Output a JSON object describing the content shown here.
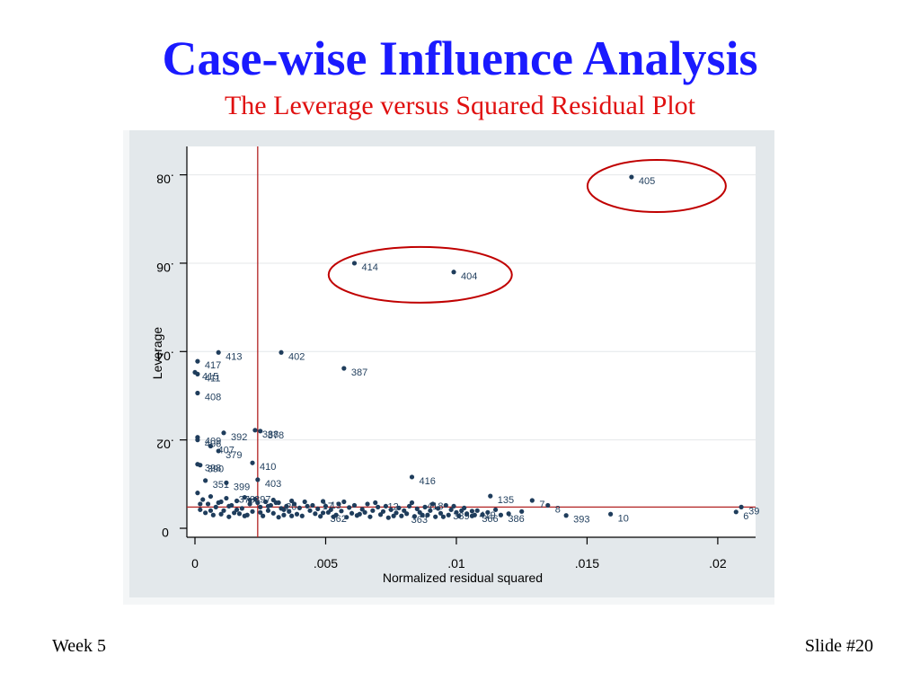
{
  "slide": {
    "title": "Case-wise Influence Analysis",
    "subtitle": "The Leverage versus Squared Residual Plot",
    "footer_left": "Week 5",
    "footer_right": "Slide #20"
  },
  "colors": {
    "title": "#1a1aff",
    "subtitle": "#e01010",
    "point": "#1f3d5c",
    "reference_line": "#b22222",
    "highlight_ellipse": "#c00000",
    "plot_region_bg": "#e8ecef"
  },
  "chart_data": {
    "type": "scatter",
    "xlabel": "Normalized residual squared",
    "ylabel": "Leverage",
    "xlim": [
      0,
      0.021
    ],
    "ylim": [
      0,
      0.085
    ],
    "x_ticks": [
      0,
      0.005,
      0.01,
      0.015,
      0.02
    ],
    "x_tick_labels": [
      "0",
      ".005",
      ".01",
      ".015",
      ".02"
    ],
    "y_ticks": [
      0,
      0.02,
      0.04,
      0.06,
      0.08
    ],
    "y_tick_labels": [
      "0",
      ".02",
      ".04",
      ".06",
      ".08"
    ],
    "reference_lines": {
      "x": 0.0024,
      "y": 0.0048
    },
    "grid": true,
    "labeled_points": [
      {
        "label": "405",
        "x": 0.0167,
        "y": 0.0795
      },
      {
        "label": "414",
        "x": 0.0061,
        "y": 0.06
      },
      {
        "label": "404",
        "x": 0.0099,
        "y": 0.058
      },
      {
        "label": "413",
        "x": 0.0009,
        "y": 0.0398
      },
      {
        "label": "402",
        "x": 0.0033,
        "y": 0.0398
      },
      {
        "label": "387",
        "x": 0.0057,
        "y": 0.0362
      },
      {
        "label": "417",
        "x": 0.0001,
        "y": 0.0378
      },
      {
        "label": "415",
        "x": 0.0,
        "y": 0.0353
      },
      {
        "label": "411",
        "x": 0.0001,
        "y": 0.0349
      },
      {
        "label": "408",
        "x": 0.0001,
        "y": 0.0306
      },
      {
        "label": "392",
        "x": 0.0011,
        "y": 0.0216
      },
      {
        "label": "378",
        "x": 0.0025,
        "y": 0.022
      },
      {
        "label": "388",
        "x": 0.0023,
        "y": 0.0222
      },
      {
        "label": "409",
        "x": 0.0001,
        "y": 0.0206
      },
      {
        "label": "406",
        "x": 0.0001,
        "y": 0.02
      },
      {
        "label": "407",
        "x": 0.0006,
        "y": 0.0186
      },
      {
        "label": "379",
        "x": 0.0009,
        "y": 0.0175
      },
      {
        "label": "410",
        "x": 0.0022,
        "y": 0.0148
      },
      {
        "label": "398",
        "x": 0.0001,
        "y": 0.0145
      },
      {
        "label": "390",
        "x": 0.0002,
        "y": 0.0143
      },
      {
        "label": "416",
        "x": 0.0083,
        "y": 0.0116
      },
      {
        "label": "351",
        "x": 0.0004,
        "y": 0.0108
      },
      {
        "label": "399",
        "x": 0.0012,
        "y": 0.0103
      },
      {
        "label": "403",
        "x": 0.0024,
        "y": 0.011
      },
      {
        "label": "135",
        "x": 0.0113,
        "y": 0.0073
      },
      {
        "label": "13",
        "x": 0.0049,
        "y": 0.0061
      },
      {
        "label": "20",
        "x": 0.0032,
        "y": 0.0058
      },
      {
        "label": "7",
        "x": 0.0129,
        "y": 0.0063
      },
      {
        "label": "8",
        "x": 0.0135,
        "y": 0.0052
      },
      {
        "label": "39",
        "x": 0.0209,
        "y": 0.0048
      },
      {
        "label": "6",
        "x": 0.0207,
        "y": 0.0037
      },
      {
        "label": "393",
        "x": 0.0142,
        "y": 0.0029
      },
      {
        "label": "10",
        "x": 0.0159,
        "y": 0.0032
      },
      {
        "label": "386",
        "x": 0.0117,
        "y": 0.003
      },
      {
        "label": "366",
        "x": 0.0107,
        "y": 0.003
      },
      {
        "label": "419",
        "x": 0.0106,
        "y": 0.0039
      }
    ],
    "cluster_points": [
      [
        0.0001,
        0.008
      ],
      [
        0.0003,
        0.0065
      ],
      [
        0.0005,
        0.0055
      ],
      [
        0.0006,
        0.0072
      ],
      [
        0.0008,
        0.0048
      ],
      [
        0.001,
        0.006
      ],
      [
        0.0011,
        0.004
      ],
      [
        0.0012,
        0.0068
      ],
      [
        0.0014,
        0.0052
      ],
      [
        0.0015,
        0.0035
      ],
      [
        0.0016,
        0.0062
      ],
      [
        0.0018,
        0.0045
      ],
      [
        0.0019,
        0.007
      ],
      [
        0.002,
        0.003
      ],
      [
        0.0021,
        0.0055
      ],
      [
        0.0022,
        0.0038
      ],
      [
        0.0023,
        0.0066
      ],
      [
        0.0025,
        0.0048
      ],
      [
        0.0026,
        0.0028
      ],
      [
        0.0027,
        0.006
      ],
      [
        0.0028,
        0.004
      ],
      [
        0.0029,
        0.0052
      ],
      [
        0.003,
        0.0034
      ],
      [
        0.0031,
        0.0058
      ],
      [
        0.0033,
        0.0045
      ],
      [
        0.0034,
        0.003
      ],
      [
        0.0035,
        0.005
      ],
      [
        0.0036,
        0.0038
      ],
      [
        0.0038,
        0.0055
      ],
      [
        0.0039,
        0.0032
      ],
      [
        0.004,
        0.0046
      ],
      [
        0.0041,
        0.0028
      ],
      [
        0.0042,
        0.006
      ],
      [
        0.0044,
        0.004
      ],
      [
        0.0045,
        0.0052
      ],
      [
        0.0046,
        0.0033
      ],
      [
        0.0047,
        0.0044
      ],
      [
        0.0048,
        0.0027
      ],
      [
        0.005,
        0.005
      ],
      [
        0.0051,
        0.0036
      ],
      [
        0.0052,
        0.0042
      ],
      [
        0.0054,
        0.003
      ],
      [
        0.0055,
        0.0055
      ],
      [
        0.0056,
        0.0039
      ],
      [
        0.0058,
        0.0025
      ],
      [
        0.0059,
        0.0047
      ],
      [
        0.006,
        0.0034
      ],
      [
        0.0061,
        0.0052
      ],
      [
        0.0062,
        0.0029
      ],
      [
        0.0064,
        0.0043
      ],
      [
        0.0065,
        0.0036
      ],
      [
        0.0066,
        0.0055
      ],
      [
        0.0067,
        0.0026
      ],
      [
        0.0068,
        0.004
      ],
      [
        0.007,
        0.0048
      ],
      [
        0.0071,
        0.0031
      ],
      [
        0.0072,
        0.0038
      ],
      [
        0.0073,
        0.005
      ],
      [
        0.0074,
        0.0024
      ],
      [
        0.0075,
        0.0042
      ],
      [
        0.0077,
        0.0035
      ],
      [
        0.0078,
        0.0046
      ],
      [
        0.0079,
        0.0028
      ],
      [
        0.008,
        0.004
      ],
      [
        0.0081,
        0.0033
      ],
      [
        0.0082,
        0.005
      ],
      [
        0.0084,
        0.0027
      ],
      [
        0.0085,
        0.0044
      ],
      [
        0.0086,
        0.0036
      ],
      [
        0.0088,
        0.0048
      ],
      [
        0.0089,
        0.003
      ],
      [
        0.009,
        0.004
      ],
      [
        0.0092,
        0.0026
      ],
      [
        0.0093,
        0.0045
      ],
      [
        0.0094,
        0.0034
      ],
      [
        0.0096,
        0.0052
      ],
      [
        0.0097,
        0.003
      ],
      [
        0.0098,
        0.0042
      ],
      [
        0.01,
        0.0036
      ],
      [
        0.0101,
        0.0028
      ],
      [
        0.0103,
        0.0046
      ],
      [
        0.0104,
        0.0033
      ],
      [
        0.0108,
        0.004
      ],
      [
        0.011,
        0.0031
      ],
      [
        0.0112,
        0.0036
      ],
      [
        0.0115,
        0.0042
      ],
      [
        0.012,
        0.0033
      ],
      [
        0.0125,
        0.0038
      ],
      [
        0.0002,
        0.0042
      ],
      [
        0.0004,
        0.0035
      ],
      [
        0.0007,
        0.003
      ],
      [
        0.0009,
        0.0058
      ],
      [
        0.0013,
        0.0026
      ],
      [
        0.0017,
        0.0033
      ],
      [
        0.0024,
        0.0058
      ],
      [
        0.0032,
        0.0025
      ],
      [
        0.0037,
        0.0062
      ],
      [
        0.0043,
        0.005
      ],
      [
        0.0049,
        0.0035
      ],
      [
        0.0053,
        0.0026
      ],
      [
        0.0057,
        0.006
      ],
      [
        0.0063,
        0.0032
      ],
      [
        0.0069,
        0.0058
      ],
      [
        0.0076,
        0.0028
      ],
      [
        0.0083,
        0.0058
      ],
      [
        0.0087,
        0.003
      ],
      [
        0.0091,
        0.0055
      ],
      [
        0.0095,
        0.0026
      ],
      [
        0.0099,
        0.005
      ],
      [
        0.0102,
        0.004
      ],
      [
        0.0106,
        0.0028
      ],
      [
        0.0002,
        0.0055
      ],
      [
        0.0006,
        0.004
      ],
      [
        0.001,
        0.0032
      ],
      [
        0.0013,
        0.005
      ],
      [
        0.0016,
        0.0042
      ],
      [
        0.0019,
        0.0028
      ],
      [
        0.0021,
        0.0064
      ],
      [
        0.0025,
        0.0036
      ],
      [
        0.0028,
        0.005
      ],
      [
        0.003,
        0.0064
      ],
      [
        0.0034,
        0.0042
      ],
      [
        0.0037,
        0.0028
      ]
    ],
    "cluster_labels": [
      {
        "label": "373",
        "x": 0.0015,
        "y": 0.0066
      },
      {
        "label": "397",
        "x": 0.0021,
        "y": 0.0066
      },
      {
        "label": "17",
        "x": 0.0047,
        "y": 0.0051
      },
      {
        "label": "12",
        "x": 0.0072,
        "y": 0.005
      },
      {
        "label": "418",
        "x": 0.0087,
        "y": 0.0051
      },
      {
        "label": "362",
        "x": 0.005,
        "y": 0.0022
      },
      {
        "label": "363",
        "x": 0.0081,
        "y": 0.002
      },
      {
        "label": "389",
        "x": 0.0097,
        "y": 0.0028
      }
    ]
  }
}
